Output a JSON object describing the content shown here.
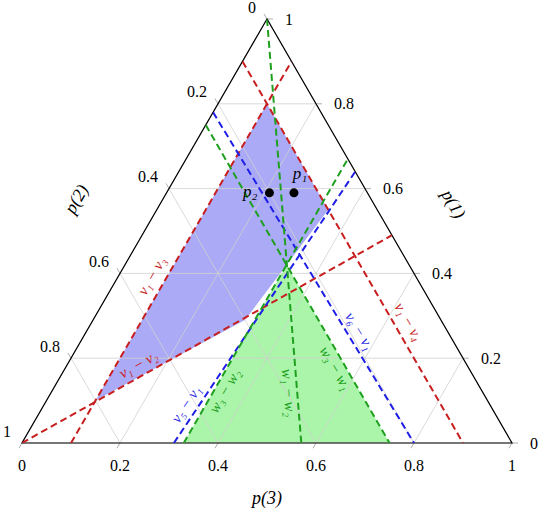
{
  "chart_data": {
    "type": "ternary",
    "grid": true,
    "axes": [
      {
        "label": "p(1)",
        "range": [
          0,
          1
        ],
        "ticks": [
          0,
          0.2,
          0.4,
          0.6,
          0.8,
          1
        ]
      },
      {
        "label": "p(2)",
        "range": [
          0,
          1
        ],
        "ticks": [
          0,
          0.2,
          0.4,
          0.6,
          0.8,
          1
        ]
      },
      {
        "label": "p(3)",
        "range": [
          0,
          1
        ],
        "ticks": [
          0,
          0.2,
          0.4,
          0.6,
          0.8,
          1
        ]
      }
    ],
    "regions": [
      {
        "color": "#aaaaf6",
        "vertices": [
          [
            0.1,
            0.8,
            0.1
          ],
          [
            0.8,
            0.1,
            0.1
          ],
          [
            0.55,
            0.1,
            0.35
          ],
          [
            0.42,
            0.25,
            0.33
          ],
          [
            0.29,
            0.4,
            0.31
          ]
        ]
      },
      {
        "color": "#aaf5aa",
        "vertices": [
          [
            0,
            0.67,
            0.33
          ],
          [
            0.42,
            0.25,
            0.33
          ],
          [
            0,
            0.25,
            0.75
          ]
        ]
      }
    ],
    "lines": [
      {
        "label": "v₁ − v₃",
        "color": "#c81e1e",
        "line_style": "dashed",
        "from": [
          0,
          0.9,
          0.1
        ],
        "to": [
          0.9,
          0,
          0.1
        ]
      },
      {
        "label": "v₁ − v₂",
        "color": "#c81e1e",
        "line_style": "dashed",
        "from": [
          0,
          1,
          0
        ],
        "to": [
          0.49,
          0,
          0.51
        ]
      },
      {
        "label": "v₁ − v₄",
        "color": "#c81e1e",
        "line_style": "dashed",
        "from": [
          0.9,
          0.1,
          0
        ],
        "to": [
          0,
          0.1,
          0.9
        ]
      },
      {
        "label": "v₅ − v₁",
        "color": "#1e1ee6",
        "line_style": "dashed",
        "from": [
          0,
          0.69,
          0.31
        ],
        "to": [
          0.64,
          0,
          0.36
        ]
      },
      {
        "label": "v₆ − v₁",
        "color": "#1e1ee6",
        "line_style": "dashed",
        "from": [
          0.78,
          0.22,
          0
        ],
        "to": [
          0,
          0.2,
          0.8
        ]
      },
      {
        "label": "w₃ − w₂",
        "color": "#1ea01e",
        "line_style": "dashed",
        "from": [
          0,
          0.67,
          0.33
        ],
        "to": [
          0.67,
          0,
          0.33
        ]
      },
      {
        "label": "w₃ − w₁",
        "color": "#1ea01e",
        "line_style": "dashed",
        "from": [
          0.75,
          0.25,
          0
        ],
        "to": [
          0,
          0.25,
          0.75
        ]
      },
      {
        "label": "w₁ − w₂",
        "color": "#1ea01e",
        "line_style": "dashed",
        "from": [
          1,
          0,
          0
        ],
        "to": [
          0,
          0.43,
          0.57
        ]
      }
    ],
    "points": [
      {
        "label": "p₁",
        "color": "#000000",
        "coords": [
          0.59,
          0.15,
          0.26
        ]
      },
      {
        "label": "p₂",
        "color": "#000000",
        "coords": [
          0.59,
          0.2,
          0.21
        ]
      }
    ]
  }
}
